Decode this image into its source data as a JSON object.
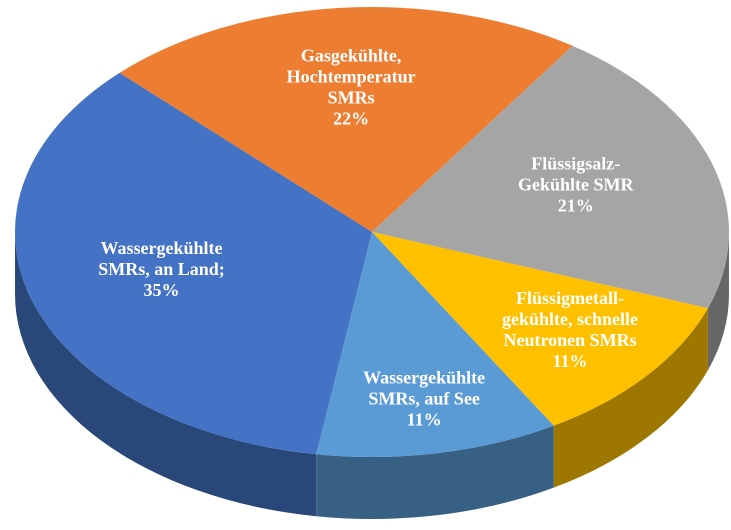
{
  "chart_data": {
    "type": "pie3d",
    "categories": [
      [
        "Gasgekühlte,",
        "Hochtemperatur",
        "SMRs"
      ],
      [
        "Flüssigsalz-",
        "Gekühlte SMR"
      ],
      [
        "Flüssigmetall-",
        "gekühlte, schnelle",
        "Neutronen SMRs"
      ],
      [
        "Wassergekühlte",
        "SMRs, auf See"
      ],
      [
        "Wassergekühlte",
        "SMRs, an Land;"
      ]
    ],
    "values": [
      22,
      21,
      11,
      11,
      35
    ],
    "value_labels": [
      "22%",
      "21%",
      "11%",
      "11%",
      "35%"
    ],
    "colors": [
      "#ed7d31",
      "#a5a5a5",
      "#ffc000",
      "#5b9bd5",
      "#4472c4"
    ]
  }
}
